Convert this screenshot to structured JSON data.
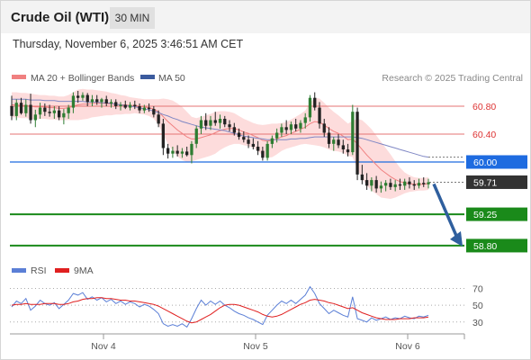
{
  "header": {
    "title": "Crude Oil (WTI)",
    "timeframe": "30 MIN"
  },
  "timestamp": "Thursday, November 6, 2025 3:46:51 AM CET",
  "legend": {
    "ma20_label": "MA 20 + Bollinger Bands",
    "ma50_label": "MA 50",
    "rsi_label": "RSI",
    "rsi_ma_label": "9MA",
    "credit": "Research © 2025 Trading Central"
  },
  "colors": {
    "up": "#2e7d32",
    "down": "#222222",
    "band_fill": "#fddcdc",
    "ma20": "#f08080",
    "ma50": "#7f87c4",
    "resistance": "#e57373",
    "current": "#1e6be0",
    "support": "#1a8a1a",
    "price_box": "#333333",
    "arrow": "#2f5f9e",
    "rsi": "#5b7fd6",
    "rsi_ma": "#e02020"
  },
  "chart_data": [
    {
      "type": "candlestick",
      "title": "Crude Oil (WTI)",
      "timeframe": "30 MIN",
      "xlabel": "",
      "ylabel": "",
      "x_ticks": [
        "Nov 4",
        "Nov 5",
        "Nov 6"
      ],
      "y_range": [
        58.67,
        61.02
      ],
      "current_price": 59.71,
      "levels": [
        {
          "value": 60.8,
          "label": "60.80",
          "kind": "resistance"
        },
        {
          "value": 60.4,
          "label": "60.40",
          "kind": "resistance"
        },
        {
          "value": 60.0,
          "label": "60.00",
          "kind": "pivot"
        },
        {
          "value": 59.71,
          "label": "59.71",
          "kind": "current"
        },
        {
          "value": 59.25,
          "label": "59.25",
          "kind": "support"
        },
        {
          "value": 58.8,
          "label": "58.80",
          "kind": "support"
        }
      ],
      "forecast": {
        "from": 59.71,
        "to": 58.8,
        "direction": "down"
      },
      "ohlc": [
        [
          60.8,
          60.95,
          60.6,
          60.66
        ],
        [
          60.66,
          60.9,
          60.6,
          60.85
        ],
        [
          60.85,
          60.92,
          60.68,
          60.7
        ],
        [
          60.7,
          60.9,
          60.65,
          60.82
        ],
        [
          60.82,
          60.98,
          60.55,
          60.6
        ],
        [
          60.6,
          60.75,
          60.5,
          60.68
        ],
        [
          60.68,
          60.85,
          60.62,
          60.78
        ],
        [
          60.78,
          60.84,
          60.66,
          60.72
        ],
        [
          60.72,
          60.82,
          60.65,
          60.7
        ],
        [
          60.7,
          60.8,
          60.62,
          60.74
        ],
        [
          60.74,
          60.8,
          60.6,
          60.64
        ],
        [
          60.64,
          60.76,
          60.54,
          60.7
        ],
        [
          60.7,
          60.82,
          60.62,
          60.78
        ],
        [
          60.78,
          61.0,
          60.7,
          60.95
        ],
        [
          60.95,
          61.02,
          60.85,
          60.92
        ],
        [
          60.92,
          61.0,
          60.88,
          60.96
        ],
        [
          60.96,
          60.99,
          60.8,
          60.86
        ],
        [
          60.86,
          60.96,
          60.8,
          60.9
        ],
        [
          60.9,
          60.96,
          60.82,
          60.86
        ],
        [
          60.86,
          60.92,
          60.78,
          60.9
        ],
        [
          60.9,
          60.95,
          60.8,
          60.84
        ],
        [
          60.84,
          60.9,
          60.78,
          60.86
        ],
        [
          60.86,
          60.9,
          60.76,
          60.8
        ],
        [
          60.8,
          60.86,
          60.74,
          60.82
        ],
        [
          60.82,
          60.88,
          60.76,
          60.78
        ],
        [
          60.78,
          60.86,
          60.74,
          60.82
        ],
        [
          60.82,
          60.88,
          60.76,
          60.8
        ],
        [
          60.8,
          60.84,
          60.7,
          60.74
        ],
        [
          60.74,
          60.82,
          60.7,
          60.78
        ],
        [
          60.78,
          60.84,
          60.72,
          60.76
        ],
        [
          60.76,
          60.8,
          60.64,
          60.68
        ],
        [
          60.68,
          60.74,
          60.5,
          60.55
        ],
        [
          60.55,
          60.62,
          60.1,
          60.2
        ],
        [
          60.2,
          60.26,
          60.05,
          60.12
        ],
        [
          60.12,
          60.22,
          60.06,
          60.16
        ],
        [
          60.16,
          60.24,
          60.08,
          60.12
        ],
        [
          60.12,
          60.2,
          60.06,
          60.15
        ],
        [
          60.15,
          60.22,
          60.08,
          60.1
        ],
        [
          60.1,
          60.3,
          59.98,
          60.26
        ],
        [
          60.26,
          60.52,
          60.2,
          60.48
        ],
        [
          60.48,
          60.66,
          60.4,
          60.6
        ],
        [
          60.6,
          60.7,
          60.46,
          60.52
        ],
        [
          60.52,
          60.66,
          60.46,
          60.6
        ],
        [
          60.6,
          60.72,
          60.52,
          60.56
        ],
        [
          60.56,
          60.68,
          60.48,
          60.62
        ],
        [
          60.62,
          60.66,
          60.5,
          60.54
        ],
        [
          60.54,
          60.6,
          60.44,
          60.5
        ],
        [
          60.5,
          60.56,
          60.38,
          60.42
        ],
        [
          60.42,
          60.48,
          60.32,
          60.36
        ],
        [
          60.36,
          60.44,
          60.28,
          60.32
        ],
        [
          60.32,
          60.38,
          60.2,
          60.26
        ],
        [
          60.26,
          60.34,
          60.18,
          60.22
        ],
        [
          60.22,
          60.3,
          60.1,
          60.16
        ],
        [
          60.16,
          60.22,
          60.02,
          60.06
        ],
        [
          60.06,
          60.3,
          60.02,
          60.26
        ],
        [
          60.26,
          60.38,
          60.2,
          60.34
        ],
        [
          60.34,
          60.48,
          60.28,
          60.42
        ],
        [
          60.42,
          60.55,
          60.36,
          60.5
        ],
        [
          60.5,
          60.6,
          60.4,
          60.46
        ],
        [
          60.46,
          60.58,
          60.4,
          60.54
        ],
        [
          60.54,
          60.62,
          60.44,
          60.48
        ],
        [
          60.48,
          60.6,
          60.42,
          60.56
        ],
        [
          60.56,
          60.7,
          60.48,
          60.64
        ],
        [
          60.64,
          60.96,
          60.58,
          60.92
        ],
        [
          60.92,
          61.0,
          60.74,
          60.78
        ],
        [
          60.78,
          60.86,
          60.48,
          60.55
        ],
        [
          60.55,
          60.62,
          60.36,
          60.42
        ],
        [
          60.42,
          60.5,
          60.2,
          60.26
        ],
        [
          60.26,
          60.36,
          60.16,
          60.32
        ],
        [
          60.32,
          60.4,
          60.2,
          60.24
        ],
        [
          60.24,
          60.32,
          60.12,
          60.18
        ],
        [
          60.18,
          60.26,
          60.08,
          60.14
        ],
        [
          60.14,
          60.82,
          60.1,
          60.72
        ],
        [
          60.72,
          60.78,
          59.74,
          59.82
        ],
        [
          59.82,
          59.96,
          59.68,
          59.74
        ],
        [
          59.74,
          59.84,
          59.6,
          59.66
        ],
        [
          59.66,
          59.78,
          59.58,
          59.74
        ],
        [
          59.74,
          59.8,
          59.56,
          59.62
        ],
        [
          59.62,
          59.72,
          59.56,
          59.66
        ],
        [
          59.66,
          59.74,
          59.58,
          59.7
        ],
        [
          59.7,
          59.76,
          59.6,
          59.64
        ],
        [
          59.64,
          59.74,
          59.58,
          59.68
        ],
        [
          59.68,
          59.76,
          59.6,
          59.66
        ],
        [
          59.66,
          59.76,
          59.6,
          59.72
        ],
        [
          59.72,
          59.78,
          59.62,
          59.68
        ],
        [
          59.68,
          59.74,
          59.6,
          59.66
        ],
        [
          59.66,
          59.76,
          59.62,
          59.7
        ],
        [
          59.7,
          59.78,
          59.64,
          59.68
        ],
        [
          59.68,
          59.76,
          59.62,
          59.71
        ]
      ],
      "ma20": [
        60.82,
        60.82,
        60.81,
        60.81,
        60.8,
        60.79,
        60.79,
        60.79,
        60.78,
        60.78,
        60.77,
        60.77,
        60.78,
        60.8,
        60.82,
        60.83,
        60.83,
        60.84,
        60.84,
        60.84,
        60.84,
        60.83,
        60.83,
        60.82,
        60.82,
        60.81,
        60.81,
        60.8,
        60.79,
        60.78,
        60.76,
        60.72,
        60.65,
        60.58,
        60.52,
        60.46,
        60.41,
        60.36,
        60.33,
        60.33,
        60.35,
        60.37,
        60.39,
        60.42,
        60.45,
        60.47,
        60.48,
        60.48,
        60.46,
        60.43,
        60.41,
        60.38,
        60.35,
        60.31,
        60.3,
        60.31,
        60.33,
        60.36,
        60.38,
        60.41,
        60.44,
        60.47,
        60.5,
        60.55,
        60.58,
        60.57,
        60.53,
        60.48,
        60.44,
        60.41,
        60.37,
        60.32,
        60.33,
        60.26,
        60.18,
        60.1,
        60.03,
        59.96,
        59.89,
        59.84,
        59.79,
        59.75,
        59.72,
        59.7,
        59.69,
        59.68,
        59.68,
        59.68,
        59.69
      ],
      "ma50": [
        60.9,
        60.9,
        60.9,
        60.9,
        60.89,
        60.89,
        60.89,
        60.88,
        60.88,
        60.88,
        60.87,
        60.87,
        60.87,
        60.87,
        60.87,
        60.87,
        60.86,
        60.86,
        60.86,
        60.85,
        60.85,
        60.84,
        60.83,
        60.82,
        60.81,
        60.8,
        60.79,
        60.78,
        60.76,
        60.75,
        60.73,
        60.71,
        60.68,
        60.66,
        60.63,
        60.61,
        60.58,
        60.56,
        60.54,
        60.52,
        60.5,
        60.49,
        60.48,
        60.47,
        60.46,
        60.45,
        60.43,
        60.41,
        60.39,
        60.37,
        60.36,
        60.35,
        60.34,
        60.33,
        60.32,
        60.32,
        60.32,
        60.32,
        60.32,
        60.33,
        60.33,
        60.34,
        60.34,
        60.35,
        60.36,
        60.36,
        60.36,
        60.36,
        60.36,
        60.36,
        60.36,
        60.36,
        60.36,
        60.35,
        60.34,
        60.32,
        60.3,
        60.28,
        60.26,
        60.24,
        60.22,
        60.2,
        60.18,
        60.16,
        60.14,
        60.12,
        60.1,
        60.08,
        60.07
      ],
      "band_width": [
        0.18,
        0.18,
        0.18,
        0.18,
        0.18,
        0.18,
        0.17,
        0.17,
        0.17,
        0.17,
        0.17,
        0.17,
        0.18,
        0.2,
        0.22,
        0.22,
        0.21,
        0.2,
        0.19,
        0.18,
        0.17,
        0.16,
        0.15,
        0.14,
        0.13,
        0.12,
        0.11,
        0.11,
        0.11,
        0.12,
        0.14,
        0.18,
        0.26,
        0.32,
        0.36,
        0.38,
        0.38,
        0.36,
        0.32,
        0.3,
        0.3,
        0.3,
        0.3,
        0.3,
        0.28,
        0.26,
        0.24,
        0.22,
        0.2,
        0.19,
        0.18,
        0.18,
        0.19,
        0.22,
        0.24,
        0.24,
        0.22,
        0.2,
        0.19,
        0.2,
        0.21,
        0.22,
        0.24,
        0.3,
        0.34,
        0.34,
        0.32,
        0.3,
        0.28,
        0.26,
        0.24,
        0.23,
        0.26,
        0.36,
        0.42,
        0.44,
        0.44,
        0.42,
        0.4,
        0.36,
        0.32,
        0.26,
        0.2,
        0.15,
        0.12,
        0.1,
        0.09,
        0.09,
        0.09
      ]
    },
    {
      "type": "line",
      "title": "RSI",
      "xlabel": "",
      "ylabel": "",
      "x_ticks": [
        "Nov 4",
        "Nov 5",
        "Nov 6"
      ],
      "y_ticks": [
        70,
        50,
        30
      ],
      "y_range": [
        18,
        78
      ],
      "series": [
        {
          "name": "RSI",
          "values": [
            48,
            55,
            52,
            58,
            44,
            49,
            56,
            52,
            50,
            53,
            46,
            51,
            56,
            64,
            62,
            65,
            57,
            60,
            56,
            59,
            54,
            57,
            52,
            55,
            51,
            54,
            52,
            48,
            51,
            49,
            45,
            40,
            28,
            25,
            27,
            25,
            28,
            24,
            34,
            46,
            56,
            50,
            55,
            51,
            55,
            50,
            47,
            43,
            40,
            38,
            35,
            33,
            30,
            27,
            38,
            44,
            50,
            55,
            52,
            56,
            52,
            57,
            62,
            72,
            64,
            52,
            46,
            40,
            44,
            41,
            38,
            36,
            60,
            34,
            32,
            30,
            35,
            32,
            34,
            36,
            33,
            35,
            34,
            37,
            35,
            34,
            37,
            36,
            38
          ]
        },
        {
          "name": "9MA",
          "values": [
            50,
            51,
            51,
            52,
            51,
            51,
            51,
            52,
            52,
            52,
            51,
            51,
            52,
            54,
            55,
            57,
            58,
            58,
            59,
            59,
            58,
            58,
            57,
            56,
            56,
            55,
            55,
            54,
            53,
            52,
            51,
            49,
            46,
            43,
            40,
            37,
            34,
            31,
            29,
            30,
            33,
            36,
            39,
            43,
            47,
            50,
            51,
            51,
            50,
            48,
            46,
            44,
            42,
            39,
            37,
            36,
            37,
            39,
            42,
            45,
            48,
            51,
            53,
            56,
            57,
            56,
            55,
            53,
            52,
            50,
            48,
            46,
            47,
            44,
            41,
            39,
            37,
            35,
            34,
            33,
            33,
            33,
            34,
            34,
            34,
            35,
            35,
            35,
            36
          ]
        }
      ]
    }
  ]
}
